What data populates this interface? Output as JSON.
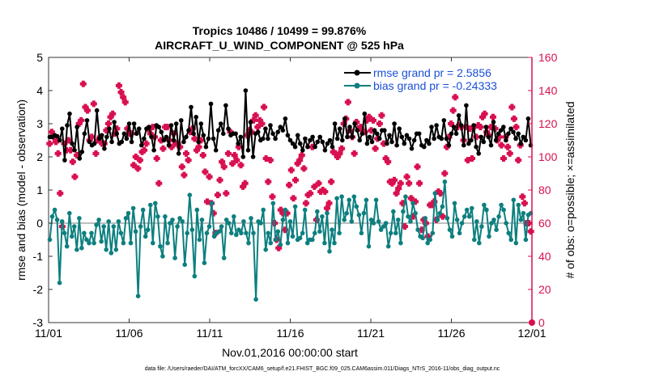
{
  "chart_data": {
    "type": "line",
    "title": "Tropics 10486 / 10499 = 99.876%",
    "subtitle": "AIRCRAFT_U_WIND_COMPONENT @ 525 hPa",
    "xlabel": "Nov.01,2016 00:00:00 start",
    "ylabel": "rmse and bias (model - observation)",
    "ylabel_right": "# of obs: o=possible; ×=assimilated",
    "footer": "data file: /Users/raeder/DAI/ATM_forcXX/CAM6_setup/f.e21.FHIST_BGC.f09_025.CAM6assim.011/Diags_NTrS_2016-11/obs_diag_output.nc",
    "x_range_days": [
      0,
      30
    ],
    "ylim": [
      -3,
      5
    ],
    "ylim_right": [
      0,
      160
    ],
    "x_ticks": [
      {
        "day": 0,
        "label": "11/01"
      },
      {
        "day": 5,
        "label": "11/06"
      },
      {
        "day": 10,
        "label": "11/11"
      },
      {
        "day": 15,
        "label": "11/16"
      },
      {
        "day": 20,
        "label": "11/21"
      },
      {
        "day": 25,
        "label": "11/26"
      },
      {
        "day": 30,
        "label": "12/01"
      }
    ],
    "y_ticks": [
      "-3",
      "-2",
      "-1",
      "0",
      "1",
      "2",
      "3",
      "4",
      "5"
    ],
    "y_ticks_right": [
      "0",
      "20",
      "40",
      "60",
      "80",
      "100",
      "120",
      "140",
      "160"
    ],
    "zero_line": 0,
    "legend": [
      {
        "label": "rmse grand pr = 2.5856",
        "series": "rmse"
      },
      {
        "label": "bias grand pr = -0.24333",
        "series": "bias"
      }
    ],
    "colors": {
      "rmse": "#000000",
      "bias": "#0d7f7f",
      "obs": "#d8104f",
      "legend_text": "#1a4fd6",
      "zero_line": "#aaaaaa",
      "right_axis": "#d8104f"
    },
    "series": [
      {
        "name": "rmse",
        "axis": "left",
        "values": [
          2.6,
          2.6,
          2.65,
          2.62,
          2.5,
          2.85,
          1.9,
          2.95,
          3.3,
          2.4,
          2.2,
          2.9,
          1.95,
          2.15,
          2.7,
          3.1,
          2.45,
          2.35,
          2.4,
          3.4,
          2.55,
          2.65,
          2.25,
          2.6,
          2.85,
          2.45,
          3.05,
          2.7,
          2.4,
          2.45,
          2.7,
          2.55,
          3.0,
          2.45,
          3.0,
          2.7,
          2.85,
          2.35,
          2.55,
          2.85,
          2.9,
          2.6,
          2.2,
          2.95,
          2.9,
          2.75,
          2.5,
          2.6,
          2.35,
          2.95,
          2.5,
          3.0,
          2.1,
          3.1,
          2.45,
          2.6,
          2.8,
          3.5,
          2.7,
          3.2,
          2.45,
          3.0,
          2.65,
          2.3,
          2.55,
          3.6,
          2.55,
          2.2,
          2.8,
          3.0,
          2.7,
          3.55,
          2.85,
          2.65,
          2.7,
          2.7,
          2.4,
          2.6,
          2.0,
          4.0,
          2.2,
          3.05,
          2.0,
          2.7,
          2.75,
          2.5,
          2.55,
          2.85,
          2.55,
          2.95,
          2.7,
          2.55,
          2.75,
          2.9,
          2.8,
          3.15,
          2.65,
          2.5,
          2.4,
          2.3,
          2.65,
          2.4,
          2.2,
          2.55,
          2.3,
          2.5,
          2.6,
          2.3,
          2.45,
          2.6,
          2.45,
          2.2,
          2.4,
          2.5,
          2.3,
          3.0,
          2.55,
          2.85,
          2.5,
          3.15,
          2.6,
          2.9,
          2.6,
          3.0,
          2.8,
          2.5,
          2.7,
          3.3,
          2.4,
          2.6,
          2.45,
          2.8,
          2.7,
          2.55,
          2.8,
          2.8,
          2.4,
          2.65,
          2.45,
          3.0,
          2.35,
          2.85,
          2.6,
          2.4,
          2.65,
          2.55,
          2.25,
          2.5,
          2.7,
          2.7,
          2.35,
          2.3,
          2.5,
          2.4,
          2.9,
          2.55,
          2.95,
          2.6,
          2.55,
          3.1,
          2.55,
          2.35,
          2.7,
          2.9,
          2.7,
          3.25,
          2.95,
          2.35,
          3.55,
          2.4,
          2.5,
          2.95,
          2.3,
          2.1,
          2.6,
          2.45,
          2.9,
          2.6,
          2.35,
          3.05,
          2.5,
          2.7,
          2.8,
          2.9,
          2.5,
          2.7,
          2.85,
          2.75,
          2.55,
          2.7,
          2.4,
          2.6,
          2.5,
          3.15,
          2.35
        ]
      },
      {
        "name": "bias",
        "axis": "left",
        "values": [
          -0.5,
          0.2,
          0.4,
          0.1,
          -1.8,
          0.05,
          -0.3,
          -0.7,
          0.3,
          -0.4,
          -0.1,
          -0.8,
          0.15,
          -0.75,
          -0.3,
          -0.5,
          -0.6,
          -0.3,
          -0.6,
          -0.05,
          0.1,
          -0.55,
          -0.1,
          -0.8,
          0.05,
          -0.9,
          -0.1,
          -0.8,
          0.05,
          -0.3,
          -0.6,
          0.15,
          0.3,
          -0.6,
          0.45,
          -0.25,
          -2.2,
          -0.1,
          0.4,
          -0.4,
          -0.2,
          0.55,
          -0.6,
          0.6,
          0.2,
          -0.7,
          -1.0,
          0.2,
          -0.6,
          0.0,
          0.1,
          -1.05,
          -0.1,
          0.15,
          0.05,
          -1.25,
          -0.3,
          0.85,
          -0.2,
          -1.6,
          0.4,
          -0.5,
          0.1,
          -1.2,
          -0.3,
          -0.1,
          0.6,
          -0.4,
          -0.3,
          -0.25,
          -0.1,
          -1.05,
          0.1,
          0.0,
          -0.3,
          0.2,
          -0.35,
          -0.2,
          -0.3,
          0.05,
          -0.3,
          -0.6,
          0.15,
          -0.3,
          -2.3,
          0.05,
          0.0,
          0.4,
          -0.8,
          -0.3,
          -0.6,
          0.6,
          -0.5,
          -0.25,
          -0.65,
          0.1,
          0.4,
          -0.6,
          0.05,
          -0.4,
          0.5,
          -0.5,
          -0.45,
          -0.3,
          0.4,
          -0.6,
          -0.5,
          -0.5,
          -0.3,
          0.35,
          -0.25,
          0.2,
          -0.6,
          0.3,
          -0.85,
          -0.2,
          -0.6,
          0.75,
          -0.3,
          0.8,
          0.1,
          0.3,
          0.7,
          0.05,
          0.8,
          0.5,
          0.25,
          -0.3,
          0.3,
          0.7,
          -0.7,
          0.1,
          0.0,
          0.7,
          0.05,
          -0.2,
          -0.1,
          0.0,
          -0.7,
          -0.3,
          0.35,
          -0.3,
          0.1,
          -0.6,
          0.35,
          0.8,
          0.2,
          0.05,
          0.6,
          0.3,
          -0.2,
          -0.4,
          -0.45,
          0.15,
          -0.6,
          -0.5,
          -0.3,
          0.9,
          0.1,
          0.3,
          0.5,
          1.25,
          0.15,
          -0.2,
          -0.4,
          0.6,
          0.1,
          -0.3,
          0.0,
          0.2,
          0.4,
          0.2,
          0.45,
          -0.5,
          0.05,
          -0.6,
          -0.1,
          0.55,
          0.4,
          -0.4,
          0.0,
          0.1,
          -0.2,
          0.2,
          0.55,
          0.4,
          0.0,
          -0.3,
          -0.5,
          0.7,
          -0.6,
          0.55,
          0.1,
          0.3,
          -0.5,
          0.25,
          0.3
        ]
      },
      {
        "name": "obs_possible",
        "axis": "right",
        "values": [
          108,
          115,
          112,
          109,
          102,
          78,
          58,
          108,
          104,
          110,
          104,
          97,
          88,
          101,
          120,
          122,
          144,
          130,
          128,
          110,
          112,
          132,
          102,
          110,
          112,
          108,
          108,
          116,
          120,
          124,
          126,
          114,
          117,
          143,
          139,
          136,
          133,
          117,
          114,
          114,
          95,
          100,
          93,
          98,
          103,
          104,
          108,
          117,
          114,
          118,
          112,
          99,
          84,
          110,
          105,
          118,
          118,
          110,
          106,
          114,
          108,
          108,
          106,
          94,
          89,
          102,
          98,
          115,
          117,
          111,
          104,
          106,
          110,
          101,
          91,
          73,
          88,
          72,
          66,
          54,
          77,
          86,
          97,
          94,
          78,
          102,
          115,
          96,
          101,
          98,
          106,
          95,
          82,
          84,
          113,
          116,
          115,
          122,
          125,
          118,
          122,
          120,
          130,
          99,
          85,
          98,
          76,
          60,
          50,
          45,
          68,
          66,
          56,
          66,
          83,
          92,
          75,
          86,
          96,
          98,
          101,
          93,
          72,
          77,
          78,
          106,
          82,
          62,
          84,
          79,
          80,
          79,
          69,
          72,
          85,
          103,
          102,
          100,
          102,
          105,
          120,
          123,
          133,
          116,
          112,
          102,
          121,
          117,
          118,
          116,
          115,
          122,
          124,
          116,
          122,
          105,
          111,
          120,
          125,
          108,
          99,
          97,
          85,
          84,
          86,
          78,
          81,
          84,
          72,
          58,
          88,
          84,
          75,
          64,
          73,
          94,
          84,
          56,
          62,
          60,
          52,
          71,
          71,
          73,
          62,
          79,
          78,
          64,
          90,
          106,
          112,
          120,
          128,
          136,
          118,
          119,
          118,
          110,
          118,
          98,
          117,
          99,
          118,
          112,
          119,
          118,
          124,
          126,
          115,
          113,
          118,
          124,
          117,
          110,
          112,
          107,
          99,
          112,
          106,
          102,
          130,
          123,
          118,
          98,
          107,
          76,
          72,
          60,
          60,
          55
        ]
      }
    ]
  }
}
